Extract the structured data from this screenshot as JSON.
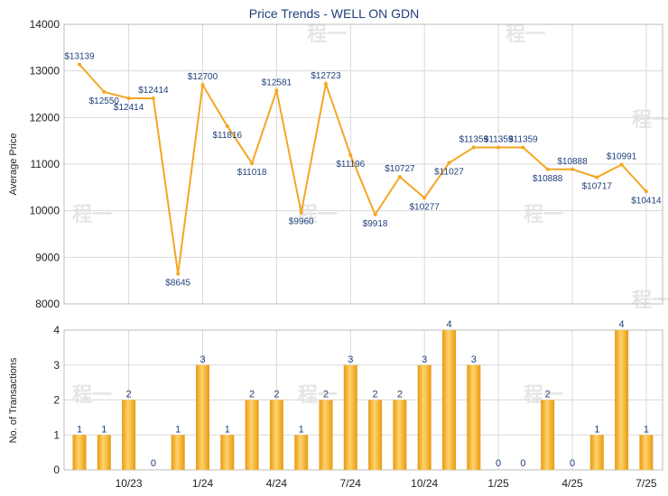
{
  "chart_data": [
    {
      "type": "line",
      "title": "Price Trends - WELL ON GDN",
      "ylabel": "Average Price",
      "ylim": [
        8000,
        14000
      ],
      "yticks": [
        "8000",
        "9000",
        "10000",
        "11000",
        "12000",
        "13000",
        "14000"
      ],
      "grid": true,
      "color": "#f5a623",
      "points": [
        {
          "label": "$13139",
          "value": 13139
        },
        {
          "label": "$12550",
          "value": 12550
        },
        {
          "label": "$12414",
          "value": 12414
        },
        {
          "label": "$12414",
          "value": 12414
        },
        {
          "label": "$8645",
          "value": 8645
        },
        {
          "label": "$12700",
          "value": 12700
        },
        {
          "label": "$11816",
          "value": 11816
        },
        {
          "label": "$11018",
          "value": 11018
        },
        {
          "label": "$12581",
          "value": 12581
        },
        {
          "label": "$9960",
          "value": 9960
        },
        {
          "label": "$12723",
          "value": 12723
        },
        {
          "label": "$11196",
          "value": 11196
        },
        {
          "label": "$9918",
          "value": 9918
        },
        {
          "label": "$10727",
          "value": 10727
        },
        {
          "label": "$10277",
          "value": 10277
        },
        {
          "label": "$11027",
          "value": 11027
        },
        {
          "label": "$11359",
          "value": 11359
        },
        {
          "label": "$11359",
          "value": 11359
        },
        {
          "label": "$11359",
          "value": 11359
        },
        {
          "label": "$10888",
          "value": 10888
        },
        {
          "label": "$10888",
          "value": 10888
        },
        {
          "label": "$10717",
          "value": 10717
        },
        {
          "label": "$10991",
          "value": 10991
        },
        {
          "label": "$10414",
          "value": 10414
        }
      ]
    },
    {
      "type": "bar",
      "ylabel": "No. of Transactions",
      "ylim": [
        0,
        4
      ],
      "yticks": [
        "0",
        "1",
        "2",
        "3",
        "4"
      ],
      "xticks": [
        "10/23",
        "1/24",
        "4/24",
        "7/24",
        "10/24",
        "1/25",
        "4/25",
        "7/25"
      ],
      "grid": true,
      "color": "#f5a623",
      "values": [
        1,
        1,
        2,
        0,
        1,
        3,
        1,
        2,
        2,
        1,
        2,
        3,
        2,
        2,
        3,
        4,
        3,
        0,
        0,
        2,
        0,
        1,
        4,
        1
      ]
    }
  ],
  "watermark": "程一"
}
